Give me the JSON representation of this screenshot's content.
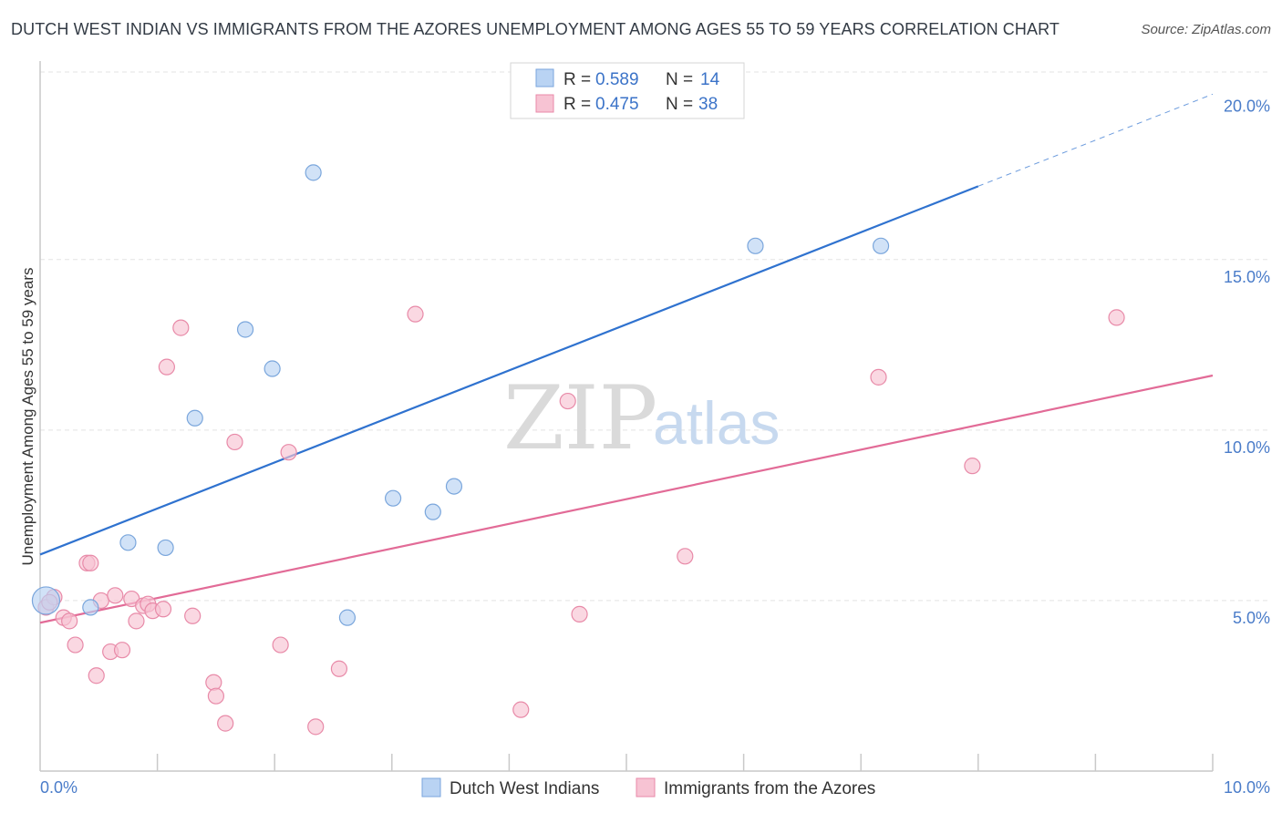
{
  "title": "DUTCH WEST INDIAN VS IMMIGRANTS FROM THE AZORES UNEMPLOYMENT AMONG AGES 55 TO 59 YEARS CORRELATION CHART",
  "source": "Source: ZipAtlas.com",
  "watermark": {
    "zip": "ZIP",
    "atlas": "atlas"
  },
  "colors": {
    "blue_fill": "#b9d3f3",
    "blue_stroke": "#7aa6dc",
    "blue_line": "#2f72cf",
    "pink_fill": "#f7c3d3",
    "pink_stroke": "#e88aa8",
    "pink_line": "#e26b97",
    "grid": "#e3e3e3",
    "axis_text": "#4a7cc9"
  },
  "legend": {
    "r_label": "R =",
    "n_label": "N =",
    "entries": [
      {
        "series": "Dutch West Indians",
        "r": "0.589",
        "n": "14"
      },
      {
        "series": "Immigrants from the Azores",
        "r": "0.475",
        "n": "38"
      }
    ]
  },
  "chart_data": {
    "type": "scatter",
    "title": "DUTCH WEST INDIAN VS IMMIGRANTS FROM THE AZORES UNEMPLOYMENT AMONG AGES 55 TO 59 YEARS CORRELATION CHART",
    "xlabel": "",
    "ylabel": "Unemployment Among Ages 55 to 59 years",
    "xlim": [
      0,
      10
    ],
    "ylim": [
      0,
      20.5
    ],
    "x_tick_labels": [
      {
        "value": 0,
        "label": "0.0%"
      },
      {
        "value": 10,
        "label": "10.0%"
      }
    ],
    "y_tick_labels": [
      {
        "value": 5,
        "label": "5.0%"
      },
      {
        "value": 10,
        "label": "10.0%"
      },
      {
        "value": 15,
        "label": "15.0%"
      },
      {
        "value": 20,
        "label": "20.0%"
      }
    ],
    "x_minor_ticks": [
      1,
      2,
      3,
      4,
      5,
      6,
      7,
      8,
      9,
      10
    ],
    "y_gridlines": [
      5,
      10,
      15,
      20.5
    ],
    "series": [
      {
        "name": "Dutch West Indians",
        "color": "blue",
        "points": [
          {
            "x": 0.05,
            "y": 5.0,
            "big": true
          },
          {
            "x": 0.43,
            "y": 4.8
          },
          {
            "x": 0.75,
            "y": 6.7
          },
          {
            "x": 1.07,
            "y": 6.55
          },
          {
            "x": 1.32,
            "y": 10.35
          },
          {
            "x": 1.75,
            "y": 12.95
          },
          {
            "x": 1.98,
            "y": 11.8
          },
          {
            "x": 2.33,
            "y": 17.55
          },
          {
            "x": 2.62,
            "y": 4.5
          },
          {
            "x": 3.01,
            "y": 8.0
          },
          {
            "x": 3.35,
            "y": 7.6
          },
          {
            "x": 3.53,
            "y": 8.35
          },
          {
            "x": 6.1,
            "y": 15.4
          },
          {
            "x": 7.17,
            "y": 15.4
          }
        ],
        "trend": {
          "x0": 0,
          "y0": 6.35,
          "x1": 8.0,
          "y1": 17.15,
          "dash_to_x": 10,
          "dash_to_y": 19.85
        }
      },
      {
        "name": "Immigrants from the Azores",
        "color": "pink",
        "points": [
          {
            "x": 0.05,
            "y": 4.8
          },
          {
            "x": 0.12,
            "y": 5.1
          },
          {
            "x": 0.2,
            "y": 4.5
          },
          {
            "x": 0.25,
            "y": 4.4
          },
          {
            "x": 0.3,
            "y": 3.7
          },
          {
            "x": 0.4,
            "y": 6.1
          },
          {
            "x": 0.43,
            "y": 6.1
          },
          {
            "x": 0.48,
            "y": 2.8
          },
          {
            "x": 0.52,
            "y": 5.0
          },
          {
            "x": 0.6,
            "y": 3.5
          },
          {
            "x": 0.64,
            "y": 5.15
          },
          {
            "x": 0.7,
            "y": 3.55
          },
          {
            "x": 0.78,
            "y": 5.05
          },
          {
            "x": 0.82,
            "y": 4.4
          },
          {
            "x": 0.88,
            "y": 4.85
          },
          {
            "x": 0.92,
            "y": 4.9
          },
          {
            "x": 0.96,
            "y": 4.7
          },
          {
            "x": 1.05,
            "y": 4.75
          },
          {
            "x": 1.08,
            "y": 11.85
          },
          {
            "x": 1.2,
            "y": 13.0
          },
          {
            "x": 1.3,
            "y": 4.55
          },
          {
            "x": 1.48,
            "y": 2.6
          },
          {
            "x": 1.5,
            "y": 2.2
          },
          {
            "x": 1.58,
            "y": 1.4
          },
          {
            "x": 1.66,
            "y": 9.65
          },
          {
            "x": 2.05,
            "y": 3.7
          },
          {
            "x": 2.12,
            "y": 9.35
          },
          {
            "x": 2.35,
            "y": 1.3
          },
          {
            "x": 2.55,
            "y": 3.0
          },
          {
            "x": 3.2,
            "y": 13.4
          },
          {
            "x": 4.1,
            "y": 1.8
          },
          {
            "x": 4.5,
            "y": 10.85
          },
          {
            "x": 4.6,
            "y": 4.6
          },
          {
            "x": 5.5,
            "y": 6.3
          },
          {
            "x": 7.15,
            "y": 11.55
          },
          {
            "x": 7.95,
            "y": 8.95
          },
          {
            "x": 9.18,
            "y": 13.3
          },
          {
            "x": 0.08,
            "y": 4.95
          }
        ],
        "trend": {
          "x0": 0,
          "y0": 4.35,
          "x1": 10,
          "y1": 11.6
        }
      }
    ]
  }
}
